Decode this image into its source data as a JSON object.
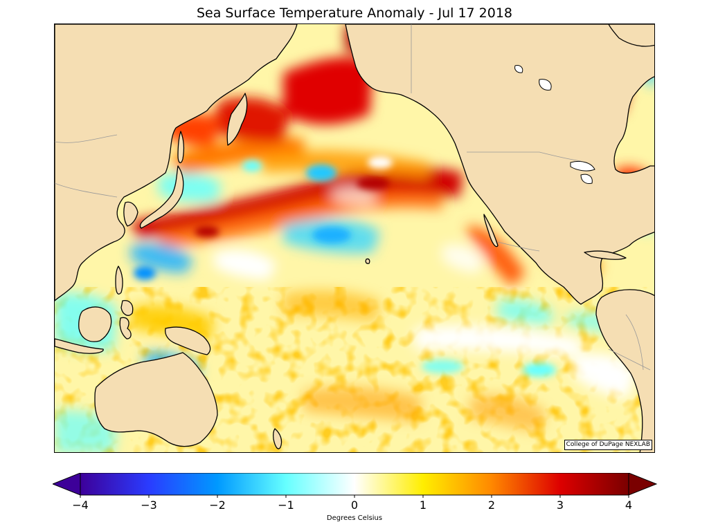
{
  "title": "Sea Surface Temperature Anomaly - Jul 17 2018",
  "credit": "College of DuPage NEXLAB",
  "colorbar": {
    "label": "Degrees Celsius",
    "min": -4,
    "max": 4,
    "ticks": [
      {
        "value": -4,
        "label": "−4"
      },
      {
        "value": -3,
        "label": "−3"
      },
      {
        "value": -2,
        "label": "−2"
      },
      {
        "value": -1,
        "label": "−1"
      },
      {
        "value": 0,
        "label": "0"
      },
      {
        "value": 1,
        "label": "1"
      },
      {
        "value": 2,
        "label": "2"
      },
      {
        "value": 3,
        "label": "3"
      },
      {
        "value": 4,
        "label": "4"
      }
    ],
    "color_stops": [
      {
        "value": -4,
        "color": "#3d0099"
      },
      {
        "value": -3,
        "color": "#2a3cff"
      },
      {
        "value": -2,
        "color": "#0099ff"
      },
      {
        "value": -1,
        "color": "#66ffff"
      },
      {
        "value": 0,
        "color": "#ffffff"
      },
      {
        "value": 1,
        "color": "#ffee00"
      },
      {
        "value": 2,
        "color": "#ff8800"
      },
      {
        "value": 3,
        "color": "#dd0000"
      },
      {
        "value": 4,
        "color": "#7a0000"
      }
    ]
  },
  "colors": {
    "land": "#f5deb3",
    "ocean_base": "#fff6a8",
    "coast": "#000000",
    "border": "#999999"
  }
}
